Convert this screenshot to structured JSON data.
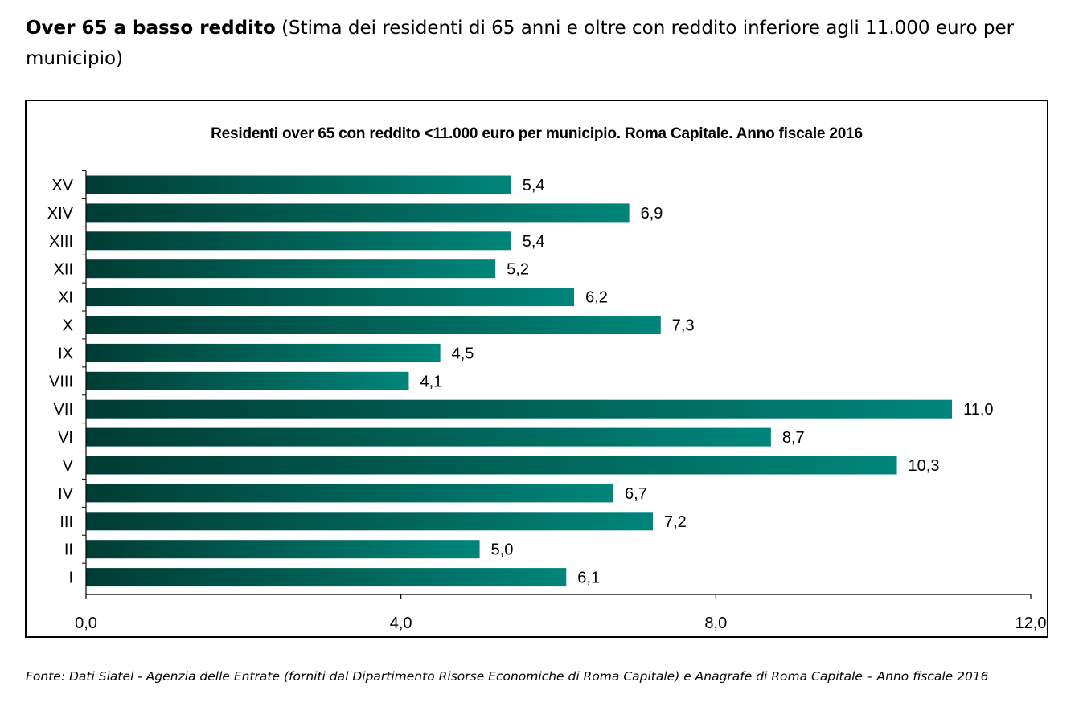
{
  "heading": {
    "bold": "Over 65 a basso reddito",
    "rest": " (Stima dei residenti di 65 anni e oltre con reddito inferiore agli 11.000 euro per municipio)"
  },
  "source": "Fonte: Dati Siatel - Agenzia delle Entrate (forniti dal Dipartimento Risorse Economiche di Roma Capitale)  e Anagrafe di Roma Capitale – Anno fiscale 2016",
  "colors": {
    "bar_dark": "#003c33",
    "bar_light": "#00857a",
    "axis": "#000000"
  },
  "chart_data": {
    "type": "bar",
    "orientation": "horizontal",
    "title": "Residenti over 65 con reddito <11.000 euro per municipio. Roma Capitale. Anno fiscale 2016",
    "categories": [
      "XV",
      "XIV",
      "XIII",
      "XII",
      "XI",
      "X",
      "IX",
      "VIII",
      "VII",
      "VI",
      "V",
      "IV",
      "III",
      "II",
      "I"
    ],
    "values": [
      5.4,
      6.9,
      5.4,
      5.2,
      6.2,
      7.3,
      4.5,
      4.1,
      11.0,
      8.7,
      10.3,
      6.7,
      7.2,
      5.0,
      6.1
    ],
    "value_labels": [
      "5,4",
      "6,9",
      "5,4",
      "5,2",
      "6,2",
      "7,3",
      "4,5",
      "4,1",
      "11,0",
      "8,7",
      "10,3",
      "6,7",
      "7,2",
      "5,0",
      "6,1"
    ],
    "xlim": [
      0,
      12
    ],
    "xticks": [
      0,
      4,
      8,
      12
    ],
    "xtick_labels": [
      "0,0",
      "4,0",
      "8,0",
      "12,0"
    ],
    "grid": false,
    "legend": false
  }
}
